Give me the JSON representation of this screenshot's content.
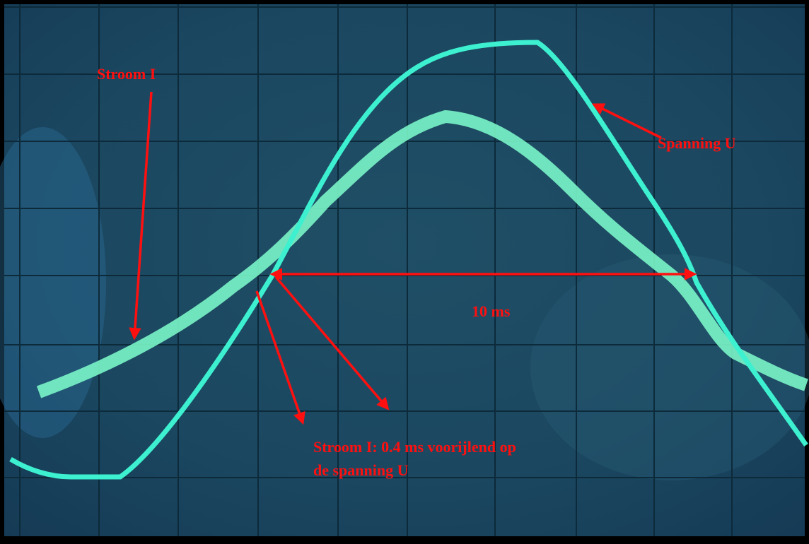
{
  "annotations": {
    "current_label": "Stroom I",
    "voltage_label": "Spanning U",
    "period_label": "10 ms",
    "lead_label": [
      "Stroom I: 0.4 ms voorijlend op",
      "de spanning U"
    ]
  }
}
